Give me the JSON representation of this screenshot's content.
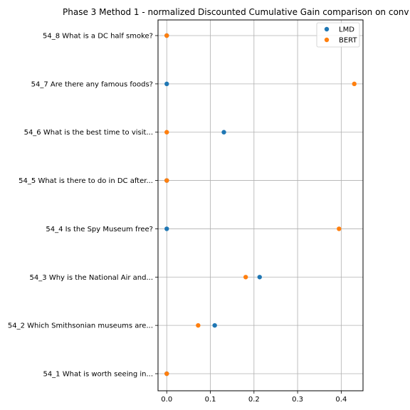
{
  "chart_data": {
    "type": "scatter",
    "title": "Phase 3 Method 1 - normalized Discounted Cumulative Gain comparison on conv",
    "xlabel": "",
    "ylabel": "",
    "xlim": [
      -0.02,
      0.45
    ],
    "xticks": [
      0.0,
      0.1,
      0.2,
      0.3,
      0.4
    ],
    "xtick_labels": [
      "0.0",
      "0.1",
      "0.2",
      "0.3",
      "0.4"
    ],
    "categories": [
      "54_1 What is worth seeing in...",
      "54_2 Which Smithsonian museums are...",
      "54_3 Why is the National Air and...",
      "54_4 Is the Spy Museum free?",
      "54_5 What is there to do in DC after...",
      "54_6 What is the best time to visit...",
      "54_7 Are there any famous foods?",
      "54_8 What is a DC half smoke?"
    ],
    "series": [
      {
        "name": "LMD",
        "color": "#1f77b4",
        "values": [
          0.0,
          0.11,
          0.213,
          0.0,
          0.0,
          0.131,
          0.0,
          0.0
        ]
      },
      {
        "name": "BERT",
        "color": "#ff7f0e",
        "values": [
          0.0,
          0.072,
          0.181,
          0.395,
          0.0,
          0.0,
          0.43,
          0.0
        ]
      }
    ],
    "grid": true,
    "legend_position": "top-right"
  }
}
